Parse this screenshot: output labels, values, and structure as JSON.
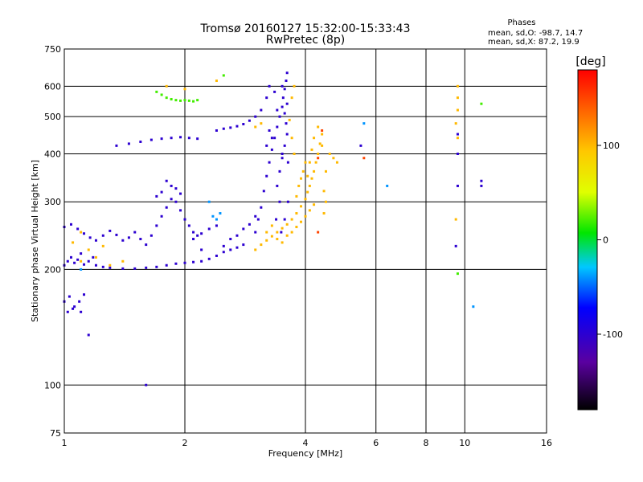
{
  "chart_data": {
    "type": "scatter",
    "title": "Tromsø 20160127 15:32:00-15:33:43",
    "subtitle": "RwPretec (8p)",
    "xlabel": "Frequency [MHz]",
    "ylabel": "Stationary phase Virtual Height [km]",
    "xscale": "log",
    "yscale": "log",
    "xlim": [
      1,
      16
    ],
    "ylim": [
      75,
      750
    ],
    "grid": true,
    "xticks": [
      1,
      2,
      4,
      6,
      8,
      10,
      16
    ],
    "xtick_labels": [
      "1",
      "2",
      "4",
      "6",
      "8",
      "10",
      "16"
    ],
    "yticks": [
      75,
      100,
      200,
      300,
      400,
      500,
      600,
      750
    ],
    "ytick_labels": [
      "75",
      "100",
      "200",
      "300",
      "400",
      "500",
      "600",
      "750"
    ],
    "stats_title": "Phases",
    "stats_line1": "mean, sd,O: -98.7, 14.7",
    "stats_line2": "mean, sd,X: 87.2, 19.9",
    "colorbar": {
      "label": "[deg]",
      "range": [
        -180,
        180
      ],
      "ticks": [
        -100,
        0,
        100
      ],
      "tick_labels": [
        "-100",
        "0",
        "100"
      ]
    },
    "series": [
      {
        "phase": -100,
        "points": [
          [
            1.0,
            205
          ],
          [
            1.02,
            210
          ],
          [
            1.04,
            215
          ],
          [
            1.06,
            208
          ],
          [
            1.08,
            212
          ],
          [
            1.1,
            220
          ],
          [
            1.12,
            206
          ],
          [
            1.15,
            210
          ],
          [
            1.18,
            215
          ],
          [
            1.2,
            205
          ],
          [
            1.25,
            203
          ],
          [
            1.3,
            202
          ],
          [
            1.4,
            201
          ],
          [
            1.5,
            201
          ],
          [
            1.6,
            202
          ],
          [
            1.7,
            203
          ],
          [
            1.8,
            205
          ],
          [
            1.9,
            207
          ],
          [
            2.0,
            208
          ],
          [
            2.1,
            209
          ],
          [
            2.2,
            210
          ],
          [
            2.3,
            213
          ],
          [
            2.4,
            217
          ],
          [
            2.5,
            222
          ],
          [
            2.6,
            225
          ],
          [
            2.7,
            228
          ],
          [
            2.8,
            232
          ],
          [
            1.0,
            258
          ],
          [
            1.04,
            262
          ],
          [
            1.08,
            255
          ],
          [
            1.12,
            248
          ],
          [
            1.16,
            242
          ],
          [
            1.2,
            238
          ],
          [
            1.25,
            245
          ],
          [
            1.3,
            252
          ],
          [
            1.35,
            246
          ],
          [
            1.4,
            238
          ],
          [
            1.45,
            242
          ],
          [
            1.5,
            250
          ],
          [
            1.55,
            240
          ],
          [
            1.6,
            232
          ],
          [
            1.65,
            245
          ],
          [
            1.7,
            260
          ],
          [
            1.75,
            275
          ],
          [
            1.8,
            290
          ],
          [
            1.85,
            305
          ],
          [
            1.9,
            300
          ],
          [
            1.95,
            285
          ],
          [
            2.0,
            270
          ],
          [
            2.05,
            260
          ],
          [
            2.1,
            250
          ],
          [
            2.15,
            245
          ],
          [
            2.2,
            248
          ],
          [
            2.3,
            255
          ],
          [
            1.8,
            340
          ],
          [
            1.85,
            330
          ],
          [
            1.9,
            325
          ],
          [
            1.95,
            315
          ],
          [
            1.75,
            318
          ],
          [
            1.7,
            310
          ],
          [
            1.35,
            420
          ],
          [
            1.45,
            425
          ],
          [
            1.55,
            430
          ],
          [
            1.65,
            435
          ],
          [
            1.75,
            438
          ],
          [
            1.85,
            440
          ],
          [
            1.95,
            442
          ],
          [
            2.05,
            440
          ],
          [
            2.15,
            438
          ],
          [
            2.4,
            460
          ],
          [
            2.5,
            465
          ],
          [
            2.6,
            468
          ],
          [
            2.7,
            472
          ],
          [
            2.8,
            478
          ],
          [
            2.9,
            488
          ],
          [
            3.0,
            500
          ],
          [
            3.1,
            520
          ],
          [
            3.2,
            560
          ],
          [
            3.25,
            600
          ],
          [
            1.0,
            165
          ],
          [
            1.03,
            170
          ],
          [
            1.06,
            160
          ],
          [
            1.09,
            165
          ],
          [
            1.12,
            172
          ],
          [
            1.02,
            155
          ],
          [
            1.05,
            158
          ],
          [
            1.1,
            155
          ],
          [
            3.0,
            250
          ],
          [
            3.05,
            270
          ],
          [
            3.1,
            290
          ],
          [
            3.15,
            320
          ],
          [
            3.2,
            350
          ],
          [
            3.25,
            380
          ],
          [
            3.3,
            410
          ],
          [
            3.35,
            440
          ],
          [
            3.4,
            470
          ],
          [
            3.45,
            500
          ],
          [
            3.5,
            530
          ],
          [
            3.52,
            560
          ],
          [
            3.55,
            590
          ],
          [
            3.58,
            620
          ],
          [
            3.6,
            650
          ],
          [
            3.4,
            330
          ],
          [
            3.45,
            360
          ],
          [
            3.5,
            390
          ],
          [
            3.55,
            420
          ],
          [
            3.6,
            450
          ],
          [
            3.58,
            480
          ],
          [
            3.55,
            510
          ],
          [
            3.5,
            400
          ],
          [
            3.45,
            300
          ],
          [
            3.38,
            270
          ],
          [
            3.3,
            440
          ],
          [
            3.4,
            520
          ],
          [
            3.5,
            600
          ],
          [
            3.62,
            380
          ],
          [
            3.62,
            300
          ],
          [
            3.55,
            270
          ],
          [
            3.48,
            250
          ],
          [
            3.2,
            420
          ],
          [
            3.25,
            460
          ],
          [
            3.35,
            580
          ],
          [
            3.6,
            540
          ],
          [
            2.6,
            240
          ],
          [
            2.7,
            245
          ],
          [
            2.8,
            255
          ],
          [
            2.9,
            262
          ],
          [
            3.0,
            275
          ],
          [
            9.5,
            230
          ],
          [
            9.6,
            330
          ],
          [
            9.6,
            400
          ],
          [
            11.0,
            340
          ],
          [
            11.0,
            330
          ],
          [
            9.6,
            450
          ],
          [
            5.5,
            420
          ],
          [
            1.15,
            135
          ],
          [
            1.6,
            100
          ],
          [
            2.5,
            230
          ],
          [
            2.4,
            260
          ],
          [
            2.2,
            225
          ],
          [
            2.1,
            240
          ]
        ]
      },
      {
        "phase": 100,
        "points": [
          [
            3.0,
            225
          ],
          [
            3.1,
            232
          ],
          [
            3.2,
            238
          ],
          [
            3.3,
            244
          ],
          [
            3.4,
            250
          ],
          [
            3.5,
            256
          ],
          [
            3.6,
            262
          ],
          [
            3.7,
            270
          ],
          [
            3.8,
            280
          ],
          [
            3.9,
            292
          ],
          [
            4.0,
            305
          ],
          [
            4.05,
            318
          ],
          [
            4.1,
            330
          ],
          [
            4.15,
            345
          ],
          [
            4.2,
            360
          ],
          [
            4.25,
            380
          ],
          [
            4.3,
            400
          ],
          [
            4.35,
            425
          ],
          [
            4.4,
            450
          ],
          [
            4.3,
            470
          ],
          [
            4.2,
            440
          ],
          [
            4.15,
            410
          ],
          [
            4.1,
            380
          ],
          [
            4.05,
            350
          ],
          [
            4.45,
            320
          ],
          [
            4.5,
            300
          ],
          [
            4.45,
            280
          ],
          [
            4.4,
            420
          ],
          [
            4.6,
            400
          ],
          [
            4.7,
            390
          ],
          [
            4.8,
            380
          ],
          [
            4.5,
            360
          ],
          [
            3.8,
            310
          ],
          [
            3.85,
            330
          ],
          [
            3.9,
            345
          ],
          [
            3.95,
            360
          ],
          [
            4.0,
            380
          ],
          [
            3.75,
            400
          ],
          [
            3.7,
            440
          ],
          [
            3.65,
            490
          ],
          [
            3.7,
            560
          ],
          [
            3.75,
            600
          ],
          [
            3.2,
            250
          ],
          [
            3.3,
            260
          ],
          [
            3.4,
            240
          ],
          [
            3.5,
            235
          ],
          [
            3.6,
            245
          ],
          [
            3.7,
            250
          ],
          [
            3.8,
            258
          ],
          [
            3.9,
            266
          ],
          [
            4.0,
            275
          ],
          [
            4.1,
            285
          ],
          [
            4.2,
            295
          ],
          [
            1.1,
            210
          ],
          [
            1.15,
            225
          ],
          [
            1.2,
            215
          ],
          [
            1.3,
            205
          ],
          [
            1.4,
            210
          ],
          [
            1.25,
            230
          ],
          [
            1.1,
            250
          ],
          [
            1.05,
            235
          ],
          [
            9.5,
            480
          ],
          [
            9.6,
            520
          ],
          [
            9.6,
            560
          ],
          [
            9.6,
            600
          ],
          [
            9.5,
            270
          ],
          [
            9.6,
            440
          ],
          [
            3.1,
            480
          ],
          [
            3.0,
            470
          ],
          [
            1.8,
            600
          ],
          [
            2.0,
            590
          ],
          [
            2.4,
            620
          ]
        ]
      },
      {
        "phase": 20,
        "points": [
          [
            1.8,
            560
          ],
          [
            1.85,
            555
          ],
          [
            1.9,
            552
          ],
          [
            1.95,
            550
          ],
          [
            2.0,
            552
          ],
          [
            2.05,
            550
          ],
          [
            2.1,
            548
          ],
          [
            2.15,
            552
          ],
          [
            1.75,
            570
          ],
          [
            1.7,
            580
          ],
          [
            11.0,
            540
          ],
          [
            9.6,
            195
          ],
          [
            2.5,
            640
          ]
        ]
      },
      {
        "phase": -40,
        "points": [
          [
            2.4,
            270
          ],
          [
            2.45,
            280
          ],
          [
            2.3,
            300
          ],
          [
            2.35,
            275
          ],
          [
            6.4,
            330
          ],
          [
            5.6,
            480
          ],
          [
            10.5,
            160
          ],
          [
            1.1,
            200
          ]
        ]
      },
      {
        "phase": 150,
        "points": [
          [
            4.3,
            250
          ],
          [
            4.3,
            390
          ],
          [
            5.6,
            390
          ],
          [
            4.4,
            460
          ]
        ]
      }
    ]
  }
}
